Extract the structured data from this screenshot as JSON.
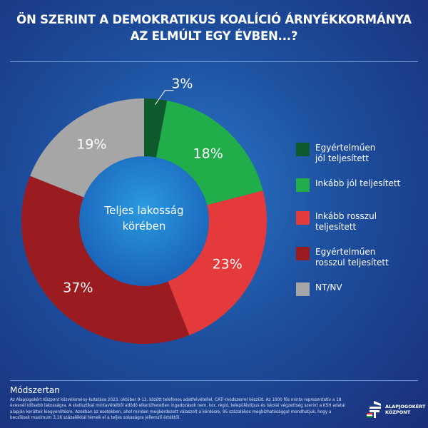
{
  "title_line1": "ÖN SZERINT A DEMOKRATIKUS KOALÍCIÓ ÁRNYÉKKORMÁNYA",
  "title_line2": "AZ ELMÚLT EGY ÉVBEN...?",
  "chart_data": {
    "type": "pie",
    "donut": true,
    "center_label": [
      "Teljes lakosság",
      "körében"
    ],
    "categories": [
      "Egyértelműen jól teljesített",
      "Inkább jól teljesített",
      "Inkább rosszul teljesített",
      "Egyértelműen rosszul teljesített",
      "NT/NV"
    ],
    "values": [
      3,
      18,
      23,
      37,
      19
    ],
    "labels": [
      "3%",
      "18%",
      "23%",
      "37%",
      "19%"
    ],
    "colors": [
      "#0f5a2c",
      "#22ad4b",
      "#e43a3b",
      "#9a1c20",
      "#a6a6a6"
    ],
    "legend_placement": "right"
  },
  "legend": [
    {
      "line1": "Egyértelműen",
      "line2": "jól teljesített"
    },
    {
      "line1": "Inkább jól teljesített",
      "line2": ""
    },
    {
      "line1": "Inkább rosszul",
      "line2": "teljesített"
    },
    {
      "line1": "Egyértelműen",
      "line2": "rosszul teljesített"
    },
    {
      "line1": "NT/NV",
      "line2": ""
    }
  ],
  "method": {
    "heading": "Módszertan",
    "text": "Az Alapjogokért Központ közvélemény-kutatása 2023. október 9-13. között telefonos adatfelvétellel, CATI-módszerrel készült. Az 1000 fős minta reprezentatív a 18 évesnél idősebb lakosságra. A statisztikai mintavételből adódó elkerülhetetlen ingadozások nem, kor, régió, településtípus és iskolai végzettség szerint a KSH adatai alapján kerültek kiegyenlítésre. Azokban az esetekben, ahol minden megkérdezett válaszolt a kérdésre, 95 százalékos megbízhatósággal mondhatjuk, hogy a becslések maximum 3,16 százalékkal térnek el a teljes sokaságra jellemző értéktől."
  },
  "logo": {
    "line1": "ALAPJOGOKÉRT",
    "line2": "KÖZPONT"
  }
}
